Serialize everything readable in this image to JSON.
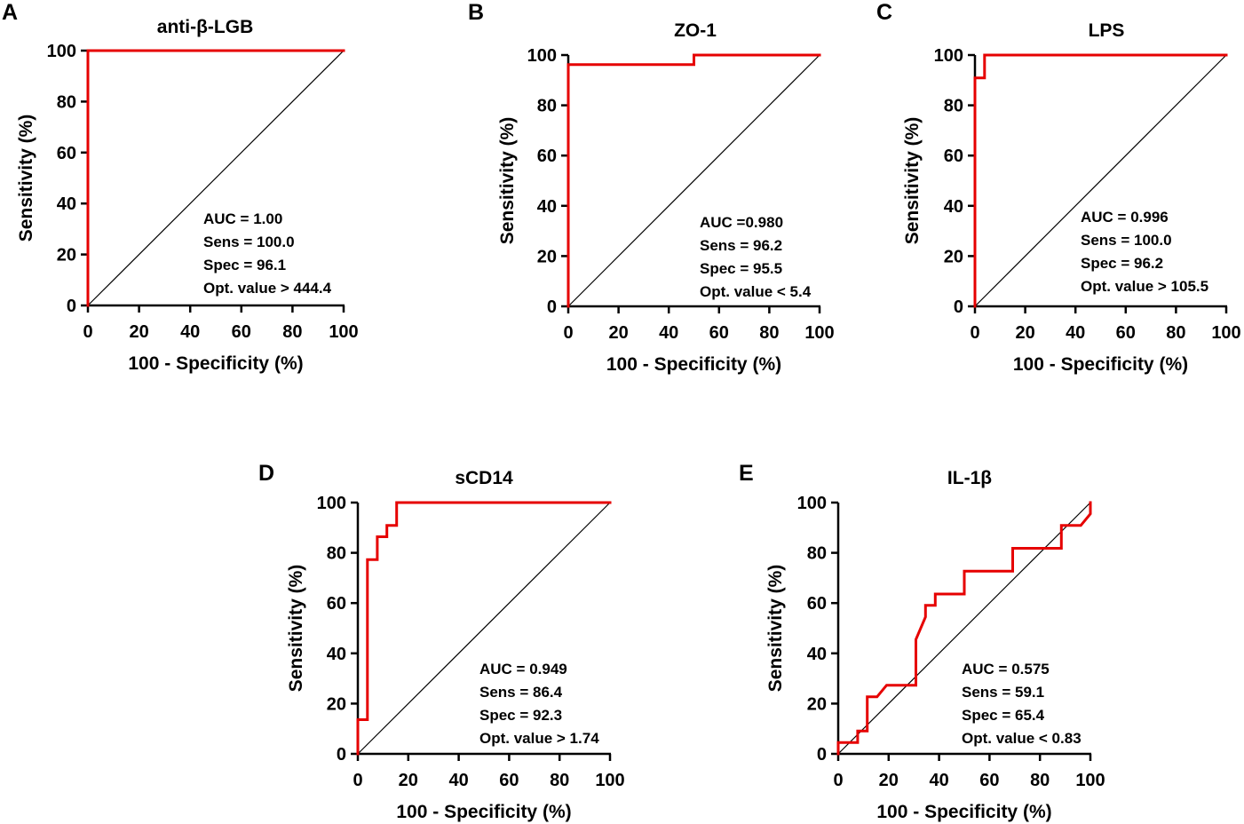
{
  "figure": {
    "panels": [
      "A",
      "B",
      "C",
      "D",
      "E"
    ]
  },
  "colors": {
    "roc_curve": "#e60000",
    "reference_line": "#000000",
    "axes": "#000000"
  },
  "chart_data": [
    {
      "panel": "A",
      "type": "line",
      "title": "anti-β-LGB",
      "xlabel": "100 - Specificity (%)",
      "ylabel": "Sensitivity (%)",
      "xlim": [
        0,
        100
      ],
      "ylim": [
        0,
        100
      ],
      "xticks": [
        0,
        20,
        40,
        60,
        80,
        100
      ],
      "yticks": [
        0,
        20,
        40,
        60,
        80,
        100
      ],
      "reference_line": {
        "x": [
          0,
          100
        ],
        "y": [
          0,
          100
        ]
      },
      "series": [
        {
          "name": "ROC",
          "x": [
            0,
            0,
            100
          ],
          "y": [
            0,
            100,
            100
          ]
        }
      ],
      "annotations": [
        "AUC = 1.00",
        "Sens = 100.0",
        "Spec = 96.1",
        "Opt. value > 444.4"
      ]
    },
    {
      "panel": "B",
      "type": "line",
      "title": "ZO-1",
      "xlabel": "100 - Specificity (%)",
      "ylabel": "Sensitivity (%)",
      "xlim": [
        0,
        100
      ],
      "ylim": [
        0,
        100
      ],
      "xticks": [
        0,
        20,
        40,
        60,
        80,
        100
      ],
      "yticks": [
        0,
        20,
        40,
        60,
        80,
        100
      ],
      "reference_line": {
        "x": [
          0,
          100
        ],
        "y": [
          0,
          100
        ]
      },
      "series": [
        {
          "name": "ROC",
          "x": [
            0,
            0,
            50,
            50,
            100
          ],
          "y": [
            0,
            96.2,
            96.2,
            100,
            100
          ]
        }
      ],
      "annotations": [
        "AUC =0.980",
        "Sens = 96.2",
        "Spec = 95.5",
        "Opt. value < 5.4"
      ]
    },
    {
      "panel": "C",
      "type": "line",
      "title": "LPS",
      "xlabel": "100 - Specificity (%)",
      "ylabel": "Sensitivity (%)",
      "xlim": [
        0,
        100
      ],
      "ylim": [
        0,
        100
      ],
      "xticks": [
        0,
        20,
        40,
        60,
        80,
        100
      ],
      "yticks": [
        0,
        20,
        40,
        60,
        80,
        100
      ],
      "reference_line": {
        "x": [
          0,
          100
        ],
        "y": [
          0,
          100
        ]
      },
      "series": [
        {
          "name": "ROC",
          "x": [
            0,
            0,
            3.8,
            3.8,
            100
          ],
          "y": [
            0,
            90.9,
            90.9,
            100,
            100
          ]
        }
      ],
      "annotations": [
        "AUC = 0.996",
        "Sens = 100.0",
        "Spec = 96.2",
        "Opt. value > 105.5"
      ]
    },
    {
      "panel": "D",
      "type": "line",
      "title": "sCD14",
      "xlabel": "100 - Specificity (%)",
      "ylabel": "Sensitivity (%)",
      "xlim": [
        0,
        100
      ],
      "ylim": [
        0,
        100
      ],
      "xticks": [
        0,
        20,
        40,
        60,
        80,
        100
      ],
      "yticks": [
        0,
        20,
        40,
        60,
        80,
        100
      ],
      "reference_line": {
        "x": [
          0,
          100
        ],
        "y": [
          0,
          100
        ]
      },
      "series": [
        {
          "name": "ROC",
          "x": [
            0,
            0,
            3.8,
            3.8,
            7.7,
            7.7,
            11.5,
            11.5,
            15.4,
            15.4,
            100
          ],
          "y": [
            0,
            13.6,
            13.6,
            77.3,
            77.3,
            86.4,
            86.4,
            90.9,
            90.9,
            100,
            100
          ]
        }
      ],
      "annotations": [
        "AUC = 0.949",
        "Sens = 86.4",
        "Spec = 92.3",
        "Opt. value > 1.74"
      ]
    },
    {
      "panel": "E",
      "type": "line",
      "title": "IL-1β",
      "xlabel": "100 - Specificity (%)",
      "ylabel": "Sensitivity (%)",
      "xlim": [
        0,
        100
      ],
      "ylim": [
        0,
        100
      ],
      "xticks": [
        0,
        20,
        40,
        60,
        80,
        100
      ],
      "yticks": [
        0,
        20,
        40,
        60,
        80,
        100
      ],
      "reference_line": {
        "x": [
          0,
          100
        ],
        "y": [
          0,
          100
        ]
      },
      "series": [
        {
          "name": "ROC",
          "x": [
            0,
            0,
            7.7,
            7.7,
            11.5,
            11.5,
            15.4,
            19.2,
            30.8,
            30.8,
            34.6,
            34.6,
            38.5,
            38.5,
            50,
            50,
            69.2,
            69.2,
            88.5,
            88.5,
            96.2,
            100,
            100
          ],
          "y": [
            0,
            4.5,
            4.5,
            9.1,
            9.1,
            22.7,
            22.7,
            27.3,
            27.3,
            45.5,
            54.5,
            59.1,
            59.1,
            63.6,
            63.6,
            72.7,
            72.7,
            81.8,
            81.8,
            90.9,
            90.9,
            95.5,
            100
          ]
        }
      ],
      "annotations": [
        "AUC = 0.575",
        "Sens = 59.1",
        "Spec = 65.4",
        "Opt. value < 0.83"
      ]
    }
  ]
}
